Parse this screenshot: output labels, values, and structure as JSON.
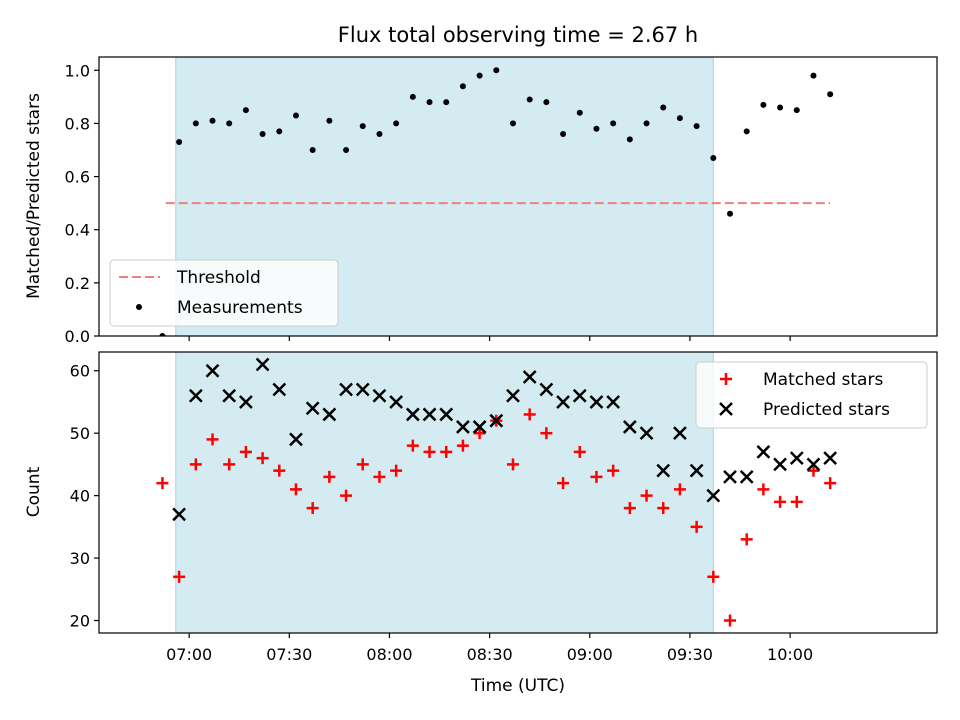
{
  "chart_data": [
    {
      "type": "scatter",
      "title": "Flux total observing time = 2.67 h",
      "ylabel": "Matched/Predicted stars",
      "xlabel": "",
      "xlim": [
        "06:33",
        "10:44"
      ],
      "ylim": [
        0,
        1.05
      ],
      "yticks": [
        "0.0",
        "0.2",
        "0.4",
        "0.6",
        "0.8",
        "1.0"
      ],
      "shaded_region": [
        "06:56",
        "09:37"
      ],
      "shaded_color": "#d4ebf1",
      "threshold": {
        "name": "Threshold",
        "y": 0.5,
        "x_range": [
          "06:53",
          "10:12"
        ],
        "color": "#f08080"
      },
      "legend": {
        "position": "lower-left",
        "entries": [
          "Threshold",
          "Measurements"
        ]
      },
      "series": [
        {
          "name": "Measurements",
          "color": "#000000",
          "x": [
            "06:52",
            "06:57",
            "07:02",
            "07:07",
            "07:12",
            "07:17",
            "07:22",
            "07:27",
            "07:32",
            "07:37",
            "07:42",
            "07:47",
            "07:52",
            "07:57",
            "08:02",
            "08:07",
            "08:12",
            "08:17",
            "08:22",
            "08:27",
            "08:32",
            "08:37",
            "08:42",
            "08:47",
            "08:52",
            "08:57",
            "09:02",
            "09:07",
            "09:12",
            "09:17",
            "09:22",
            "09:27",
            "09:32",
            "09:37",
            "09:42",
            "09:47",
            "09:52",
            "09:57",
            "10:02",
            "10:07",
            "10:12"
          ],
          "y": [
            0.0,
            0.73,
            0.8,
            0.81,
            0.8,
            0.85,
            0.76,
            0.77,
            0.83,
            0.7,
            0.81,
            0.7,
            0.79,
            0.76,
            0.8,
            0.9,
            0.88,
            0.88,
            0.94,
            0.98,
            1.0,
            0.8,
            0.89,
            0.88,
            0.76,
            0.84,
            0.78,
            0.8,
            0.74,
            0.8,
            0.86,
            0.82,
            0.79,
            0.67,
            0.46,
            0.77,
            0.87,
            0.86,
            0.85,
            0.98,
            0.91
          ]
        }
      ]
    },
    {
      "type": "scatter",
      "title": "",
      "ylabel": "Count",
      "xlabel": "Time (UTC)",
      "xlim": [
        "06:33",
        "10:44"
      ],
      "ylim": [
        18,
        63
      ],
      "yticks": [
        "20",
        "30",
        "40",
        "50",
        "60"
      ],
      "xticks": [
        "07:00",
        "07:30",
        "08:00",
        "08:30",
        "09:00",
        "09:30",
        "10:00"
      ],
      "shaded_region": [
        "06:56",
        "09:37"
      ],
      "shaded_color": "#d4ebf1",
      "legend": {
        "position": "upper-right",
        "entries": [
          "Matched stars",
          "Predicted stars"
        ]
      },
      "series": [
        {
          "name": "Matched stars",
          "color": "#ff0000",
          "marker": "plus",
          "x": [
            "06:52",
            "06:57",
            "07:02",
            "07:07",
            "07:12",
            "07:17",
            "07:22",
            "07:27",
            "07:32",
            "07:37",
            "07:42",
            "07:47",
            "07:52",
            "07:57",
            "08:02",
            "08:07",
            "08:12",
            "08:17",
            "08:22",
            "08:27",
            "08:32",
            "08:37",
            "08:42",
            "08:47",
            "08:52",
            "08:57",
            "09:02",
            "09:07",
            "09:12",
            "09:17",
            "09:22",
            "09:27",
            "09:32",
            "09:37",
            "09:42",
            "09:47",
            "09:52",
            "09:57",
            "10:02",
            "10:07",
            "10:12"
          ],
          "y": [
            42,
            27,
            45,
            49,
            45,
            47,
            46,
            44,
            41,
            38,
            43,
            40,
            45,
            43,
            44,
            48,
            47,
            47,
            48,
            50,
            52,
            45,
            53,
            50,
            42,
            47,
            43,
            44,
            38,
            40,
            38,
            41,
            35,
            27,
            20,
            33,
            41,
            39,
            39,
            44,
            42
          ]
        },
        {
          "name": "Predicted stars",
          "color": "#000000",
          "marker": "x",
          "x": [
            "06:57",
            "07:02",
            "07:07",
            "07:12",
            "07:17",
            "07:22",
            "07:27",
            "07:32",
            "07:37",
            "07:42",
            "07:47",
            "07:52",
            "07:57",
            "08:02",
            "08:07",
            "08:12",
            "08:17",
            "08:22",
            "08:27",
            "08:32",
            "08:37",
            "08:42",
            "08:47",
            "08:52",
            "08:57",
            "09:02",
            "09:07",
            "09:12",
            "09:17",
            "09:22",
            "09:27",
            "09:32",
            "09:37",
            "09:42",
            "09:47",
            "09:52",
            "09:57",
            "10:02",
            "10:07",
            "10:12"
          ],
          "y": [
            37,
            56,
            60,
            56,
            55,
            61,
            57,
            49,
            54,
            53,
            57,
            57,
            56,
            55,
            53,
            53,
            53,
            51,
            51,
            52,
            56,
            59,
            57,
            55,
            56,
            55,
            55,
            51,
            50,
            44,
            50,
            44,
            40,
            43,
            43,
            47,
            45,
            46,
            45,
            46
          ]
        }
      ]
    }
  ]
}
